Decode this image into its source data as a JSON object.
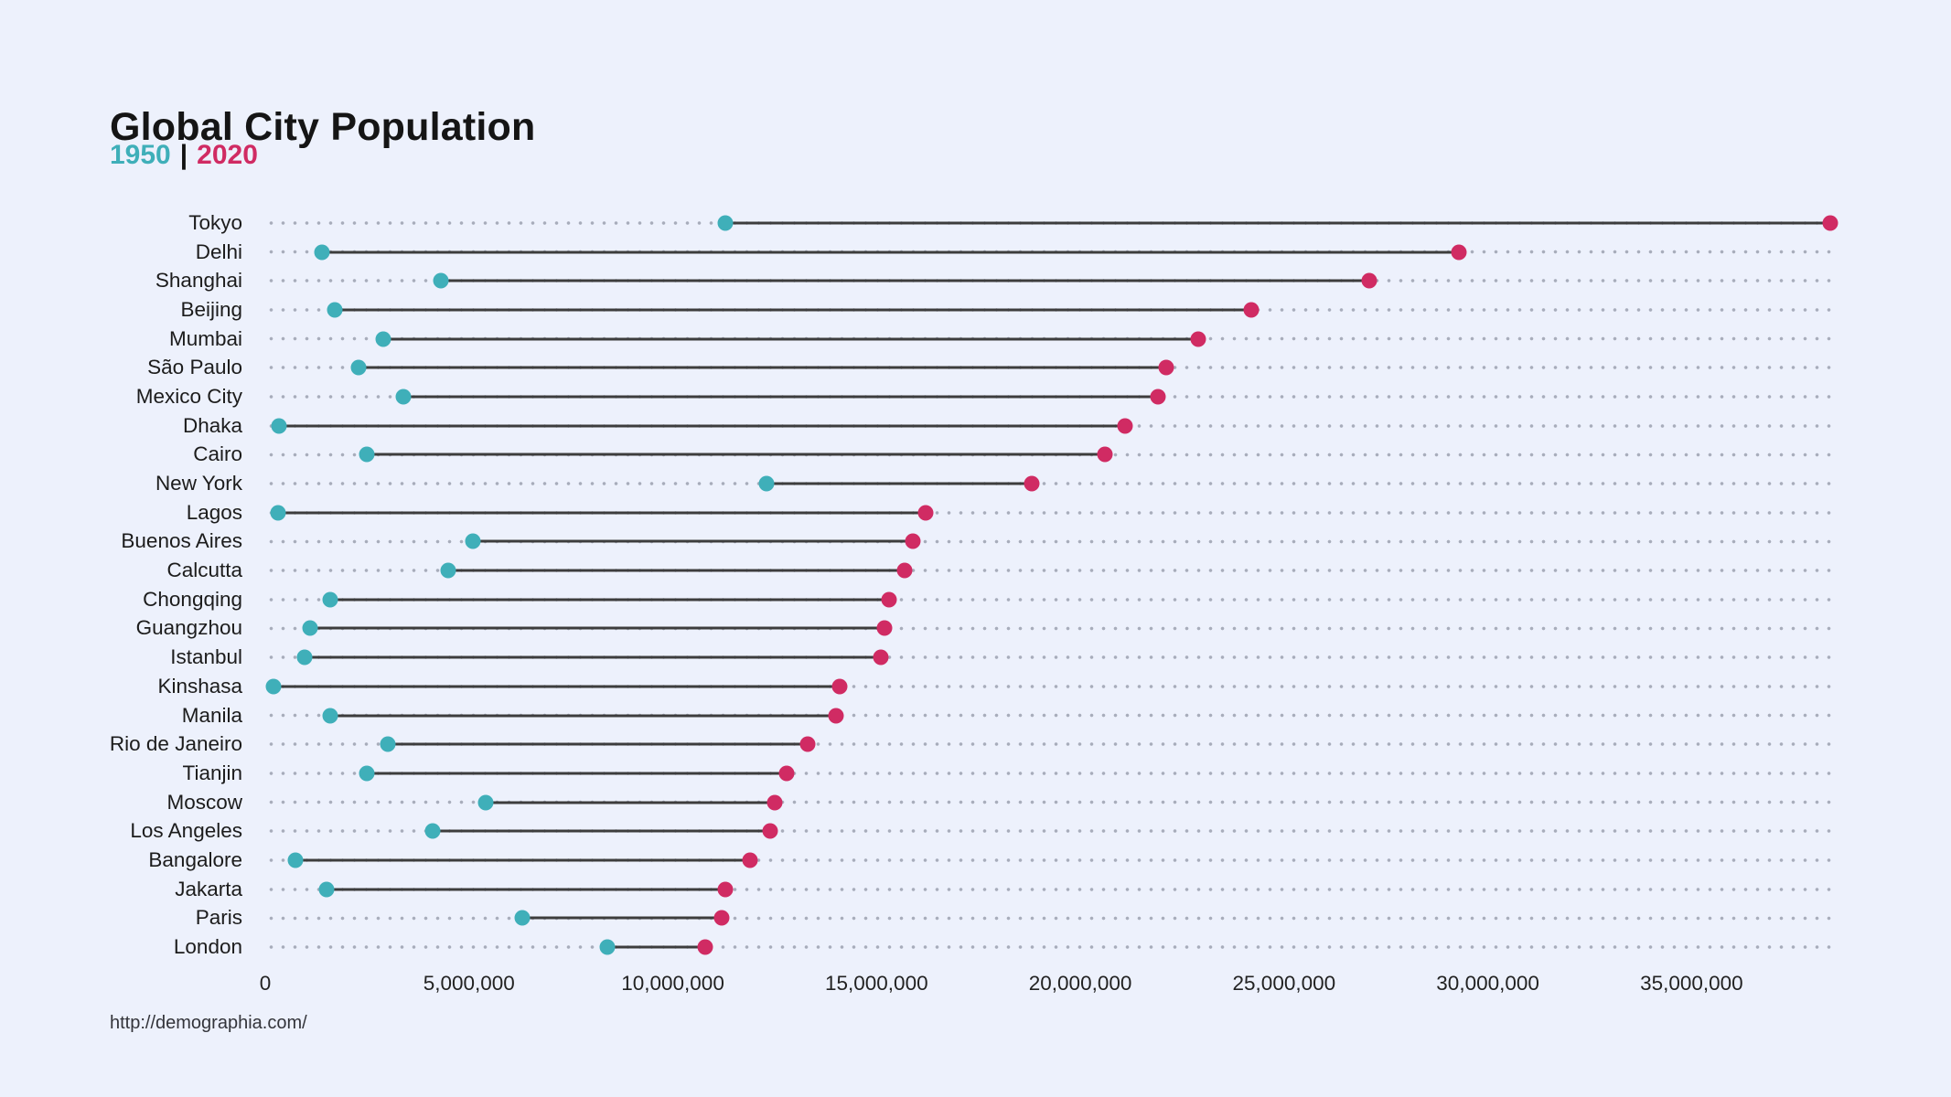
{
  "header": {
    "title": "Global City Population",
    "legend": {
      "year_start": "1950",
      "separator": "|",
      "year_end": "2020"
    }
  },
  "source": {
    "url_label": "http://demographia.com/"
  },
  "colors": {
    "background": "#edf1fc",
    "teal_1950": "#3fafb9",
    "pink_2020": "#d02b63",
    "connector": "#3d3d3d",
    "grid_dots": "#a8adbb",
    "text": "#1c1c1c"
  },
  "chart_data": {
    "type": "dumbbell",
    "title": "Global City Population",
    "subtitle": "1950 | 2020",
    "series_names": [
      "1950",
      "2020"
    ],
    "xlabel": "",
    "ylabel": "",
    "axis": {
      "min": 0,
      "max": 38560000,
      "grid": "dotted horizontal leader lines per row",
      "tick_values": [
        0,
        5000000,
        10000000,
        15000000,
        20000000,
        25000000,
        30000000,
        35000000
      ],
      "tick_labels": [
        "0",
        "5,000,000",
        "10,000,000",
        "15,000,000",
        "20,000,000",
        "25,000,000",
        "30,000,000",
        "35,000,000"
      ]
    },
    "cities": [
      {
        "name": "Tokyo",
        "y1950": 11300000,
        "y2020": 38400000
      },
      {
        "name": "Delhi",
        "y1950": 1400000,
        "y2020": 29300000
      },
      {
        "name": "Shanghai",
        "y1950": 4300000,
        "y2020": 27100000
      },
      {
        "name": "Beijing",
        "y1950": 1700000,
        "y2020": 24200000
      },
      {
        "name": "Mumbai",
        "y1950": 2900000,
        "y2020": 22900000
      },
      {
        "name": "São Paulo",
        "y1950": 2300000,
        "y2020": 22100000
      },
      {
        "name": "Mexico City",
        "y1950": 3400000,
        "y2020": 21900000
      },
      {
        "name": "Dhaka",
        "y1950": 340000,
        "y2020": 21100000
      },
      {
        "name": "Cairo",
        "y1950": 2500000,
        "y2020": 20600000
      },
      {
        "name": "New York",
        "y1950": 12300000,
        "y2020": 18800000
      },
      {
        "name": "Lagos",
        "y1950": 320000,
        "y2020": 16200000
      },
      {
        "name": "Buenos Aires",
        "y1950": 5100000,
        "y2020": 15900000
      },
      {
        "name": "Calcutta",
        "y1950": 4500000,
        "y2020": 15700000
      },
      {
        "name": "Chongqing",
        "y1950": 1600000,
        "y2020": 15300000
      },
      {
        "name": "Guangzhou",
        "y1950": 1100000,
        "y2020": 15200000
      },
      {
        "name": "Istanbul",
        "y1950": 970000,
        "y2020": 15100000
      },
      {
        "name": "Kinshasa",
        "y1950": 200000,
        "y2020": 14100000
      },
      {
        "name": "Manila",
        "y1950": 1600000,
        "y2020": 14000000
      },
      {
        "name": "Rio de Janeiro",
        "y1950": 3000000,
        "y2020": 13300000
      },
      {
        "name": "Tianjin",
        "y1950": 2500000,
        "y2020": 12800000
      },
      {
        "name": "Moscow",
        "y1950": 5400000,
        "y2020": 12500000
      },
      {
        "name": "Los Angeles",
        "y1950": 4100000,
        "y2020": 12400000
      },
      {
        "name": "Bangalore",
        "y1950": 750000,
        "y2020": 11900000
      },
      {
        "name": "Jakarta",
        "y1950": 1500000,
        "y2020": 11300000
      },
      {
        "name": "Paris",
        "y1950": 6300000,
        "y2020": 11200000
      },
      {
        "name": "London",
        "y1950": 8400000,
        "y2020": 10800000
      }
    ]
  }
}
